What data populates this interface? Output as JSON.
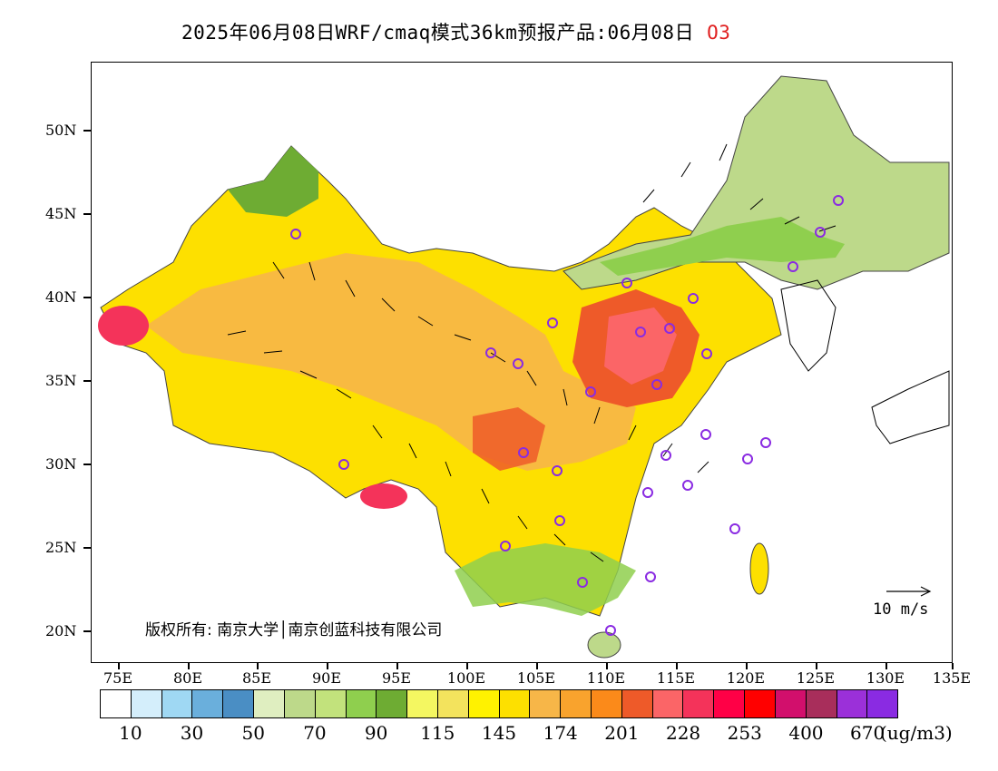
{
  "title": {
    "text": "2025年06月08日WRF/cmaq模式36km预报产品:06月08日",
    "variable": "O3"
  },
  "axes": {
    "lat_labels": [
      "50N",
      "45N",
      "40N",
      "35N",
      "30N",
      "25N",
      "20N"
    ],
    "lon_labels": [
      "75E",
      "80E",
      "85E",
      "90E",
      "95E",
      "100E",
      "105E",
      "110E",
      "115E",
      "120E",
      "125E",
      "130E",
      "135E"
    ]
  },
  "map": {
    "copyright": "版权所有: 南京大学│南京创蓝科技有限公司",
    "vector_scale_label": "10 m/s"
  },
  "colorbar": {
    "unit": "(ug/m3)",
    "colors": [
      "#ffffff",
      "#d4eefb",
      "#9fd8f3",
      "#6aafdc",
      "#4a8ec4",
      "#dfeec0",
      "#bdd98a",
      "#c2e27c",
      "#8fcf4e",
      "#6eac33",
      "#f4f761",
      "#f3e35d",
      "#fff200",
      "#fde000",
      "#f7b648",
      "#f9a32d",
      "#fb8a1a",
      "#ee5a29",
      "#fb6567",
      "#f4335a",
      "#ff0046",
      "#ff0000",
      "#d20f6c",
      "#a82e5b",
      "#9b30d9",
      "#8a2be2"
    ],
    "labels": [
      "10",
      "30",
      "50",
      "70",
      "90",
      "115",
      "145",
      "174",
      "201",
      "228",
      "253",
      "400",
      "670"
    ]
  }
}
